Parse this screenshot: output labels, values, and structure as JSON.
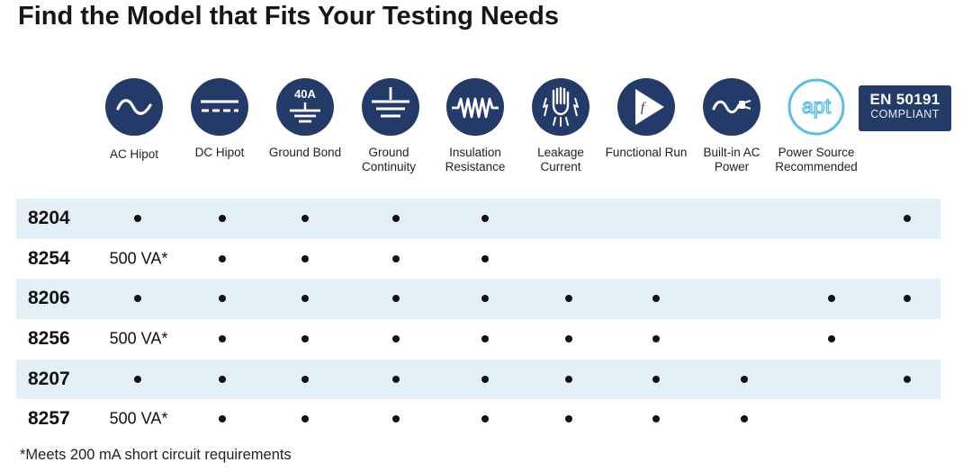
{
  "title": "Find the Model that Fits Your Testing Needs",
  "colors": {
    "icon_navy": "#243a68",
    "apt_blue": "#5bbde6",
    "row_shade": "#e4f0f8"
  },
  "columns": [
    {
      "key": "ac_hipot",
      "label": "AC Hipot",
      "icon": "sine-wave-icon",
      "icon_text": ""
    },
    {
      "key": "dc_hipot",
      "label": "DC Hipot",
      "icon": "dc-line-icon",
      "icon_text": ""
    },
    {
      "key": "ground_bond",
      "label": "Ground Bond",
      "icon": "ground-bond-icon",
      "icon_text": "40A"
    },
    {
      "key": "ground_continuity",
      "label": "Ground Continuity",
      "icon": "ground-icon",
      "icon_text": ""
    },
    {
      "key": "insulation_resistance",
      "label": "Insulation Resistance",
      "icon": "resistor-icon",
      "icon_text": ""
    },
    {
      "key": "leakage_current",
      "label": "Leakage Current",
      "icon": "hand-leakage-icon",
      "icon_text": ""
    },
    {
      "key": "functional_run",
      "label": "Functional Run",
      "icon": "play-function-icon",
      "icon_text": "f"
    },
    {
      "key": "builtin_ac_power",
      "label": "Built-in AC Power",
      "icon": "plug-sine-icon",
      "icon_text": ""
    },
    {
      "key": "power_source",
      "label": "Power Source Recommended",
      "icon": "apt-logo-icon",
      "icon_text": "apt"
    },
    {
      "key": "en50191",
      "label": "",
      "icon": "en-badge",
      "icon_text": ""
    }
  ],
  "badge": {
    "line1": "EN 50191",
    "line2": "COMPLIANT"
  },
  "rows": [
    {
      "model": "8204",
      "cells": [
        "•",
        "•",
        "•",
        "•",
        "•",
        "",
        "",
        "",
        "",
        "•"
      ]
    },
    {
      "model": "8254",
      "cells": [
        "500 VA*",
        "•",
        "•",
        "•",
        "•",
        "",
        "",
        "",
        "",
        ""
      ]
    },
    {
      "model": "8206",
      "cells": [
        "•",
        "•",
        "•",
        "•",
        "•",
        "•",
        "•",
        "",
        "•",
        "•"
      ]
    },
    {
      "model": "8256",
      "cells": [
        "500 VA*",
        "•",
        "•",
        "•",
        "•",
        "•",
        "•",
        "",
        "•",
        ""
      ]
    },
    {
      "model": "8207",
      "cells": [
        "•",
        "•",
        "•",
        "•",
        "•",
        "•",
        "•",
        "•",
        "",
        "•"
      ]
    },
    {
      "model": "8257",
      "cells": [
        "500 VA*",
        "•",
        "•",
        "•",
        "•",
        "•",
        "•",
        "•",
        "",
        ""
      ]
    }
  ],
  "footnote": "*Meets 200 mA short circuit requirements"
}
